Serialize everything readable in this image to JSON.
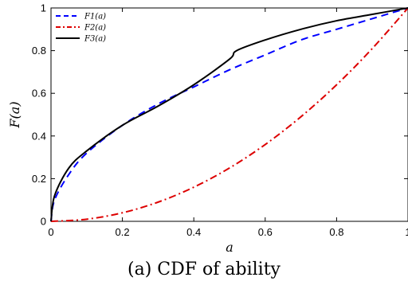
{
  "caption": "(a) CDF of ability",
  "chart_data": {
    "type": "line",
    "xlabel": "a",
    "ylabel": "F(a)",
    "xlim": [
      0,
      1
    ],
    "ylim": [
      0,
      1
    ],
    "x_ticks": [
      "0",
      "0.2",
      "0.4",
      "0.6",
      "0.8",
      "1"
    ],
    "y_ticks": [
      "0",
      "0.2",
      "0.4",
      "0.6",
      "0.8",
      "1"
    ],
    "legend_position": "top-left",
    "grid": false,
    "series": [
      {
        "name": "F1(a)",
        "color": "#0000ff",
        "style": "dashed",
        "x": [
          0,
          0.01,
          0.05,
          0.1,
          0.2,
          0.3,
          0.4,
          0.5,
          0.6,
          0.7,
          0.8,
          0.9,
          1.0
        ],
        "y": [
          0,
          0.1,
          0.22,
          0.32,
          0.45,
          0.55,
          0.63,
          0.71,
          0.78,
          0.85,
          0.9,
          0.95,
          1.0
        ]
      },
      {
        "name": "F2(a)",
        "color": "#dd0000",
        "style": "dashdot",
        "x": [
          0,
          0.1,
          0.2,
          0.3,
          0.4,
          0.5,
          0.6,
          0.7,
          0.8,
          0.9,
          1.0
        ],
        "y": [
          0,
          0.01,
          0.04,
          0.09,
          0.16,
          0.25,
          0.36,
          0.49,
          0.64,
          0.81,
          1.0
        ]
      },
      {
        "name": "F3(a)",
        "color": "#000000",
        "style": "solid",
        "x": [
          0,
          0.01,
          0.05,
          0.1,
          0.2,
          0.3,
          0.4,
          0.5,
          0.52,
          0.6,
          0.7,
          0.8,
          0.9,
          1.0
        ],
        "y": [
          0,
          0.12,
          0.25,
          0.33,
          0.45,
          0.54,
          0.64,
          0.76,
          0.8,
          0.85,
          0.9,
          0.94,
          0.97,
          1.0
        ]
      }
    ]
  }
}
